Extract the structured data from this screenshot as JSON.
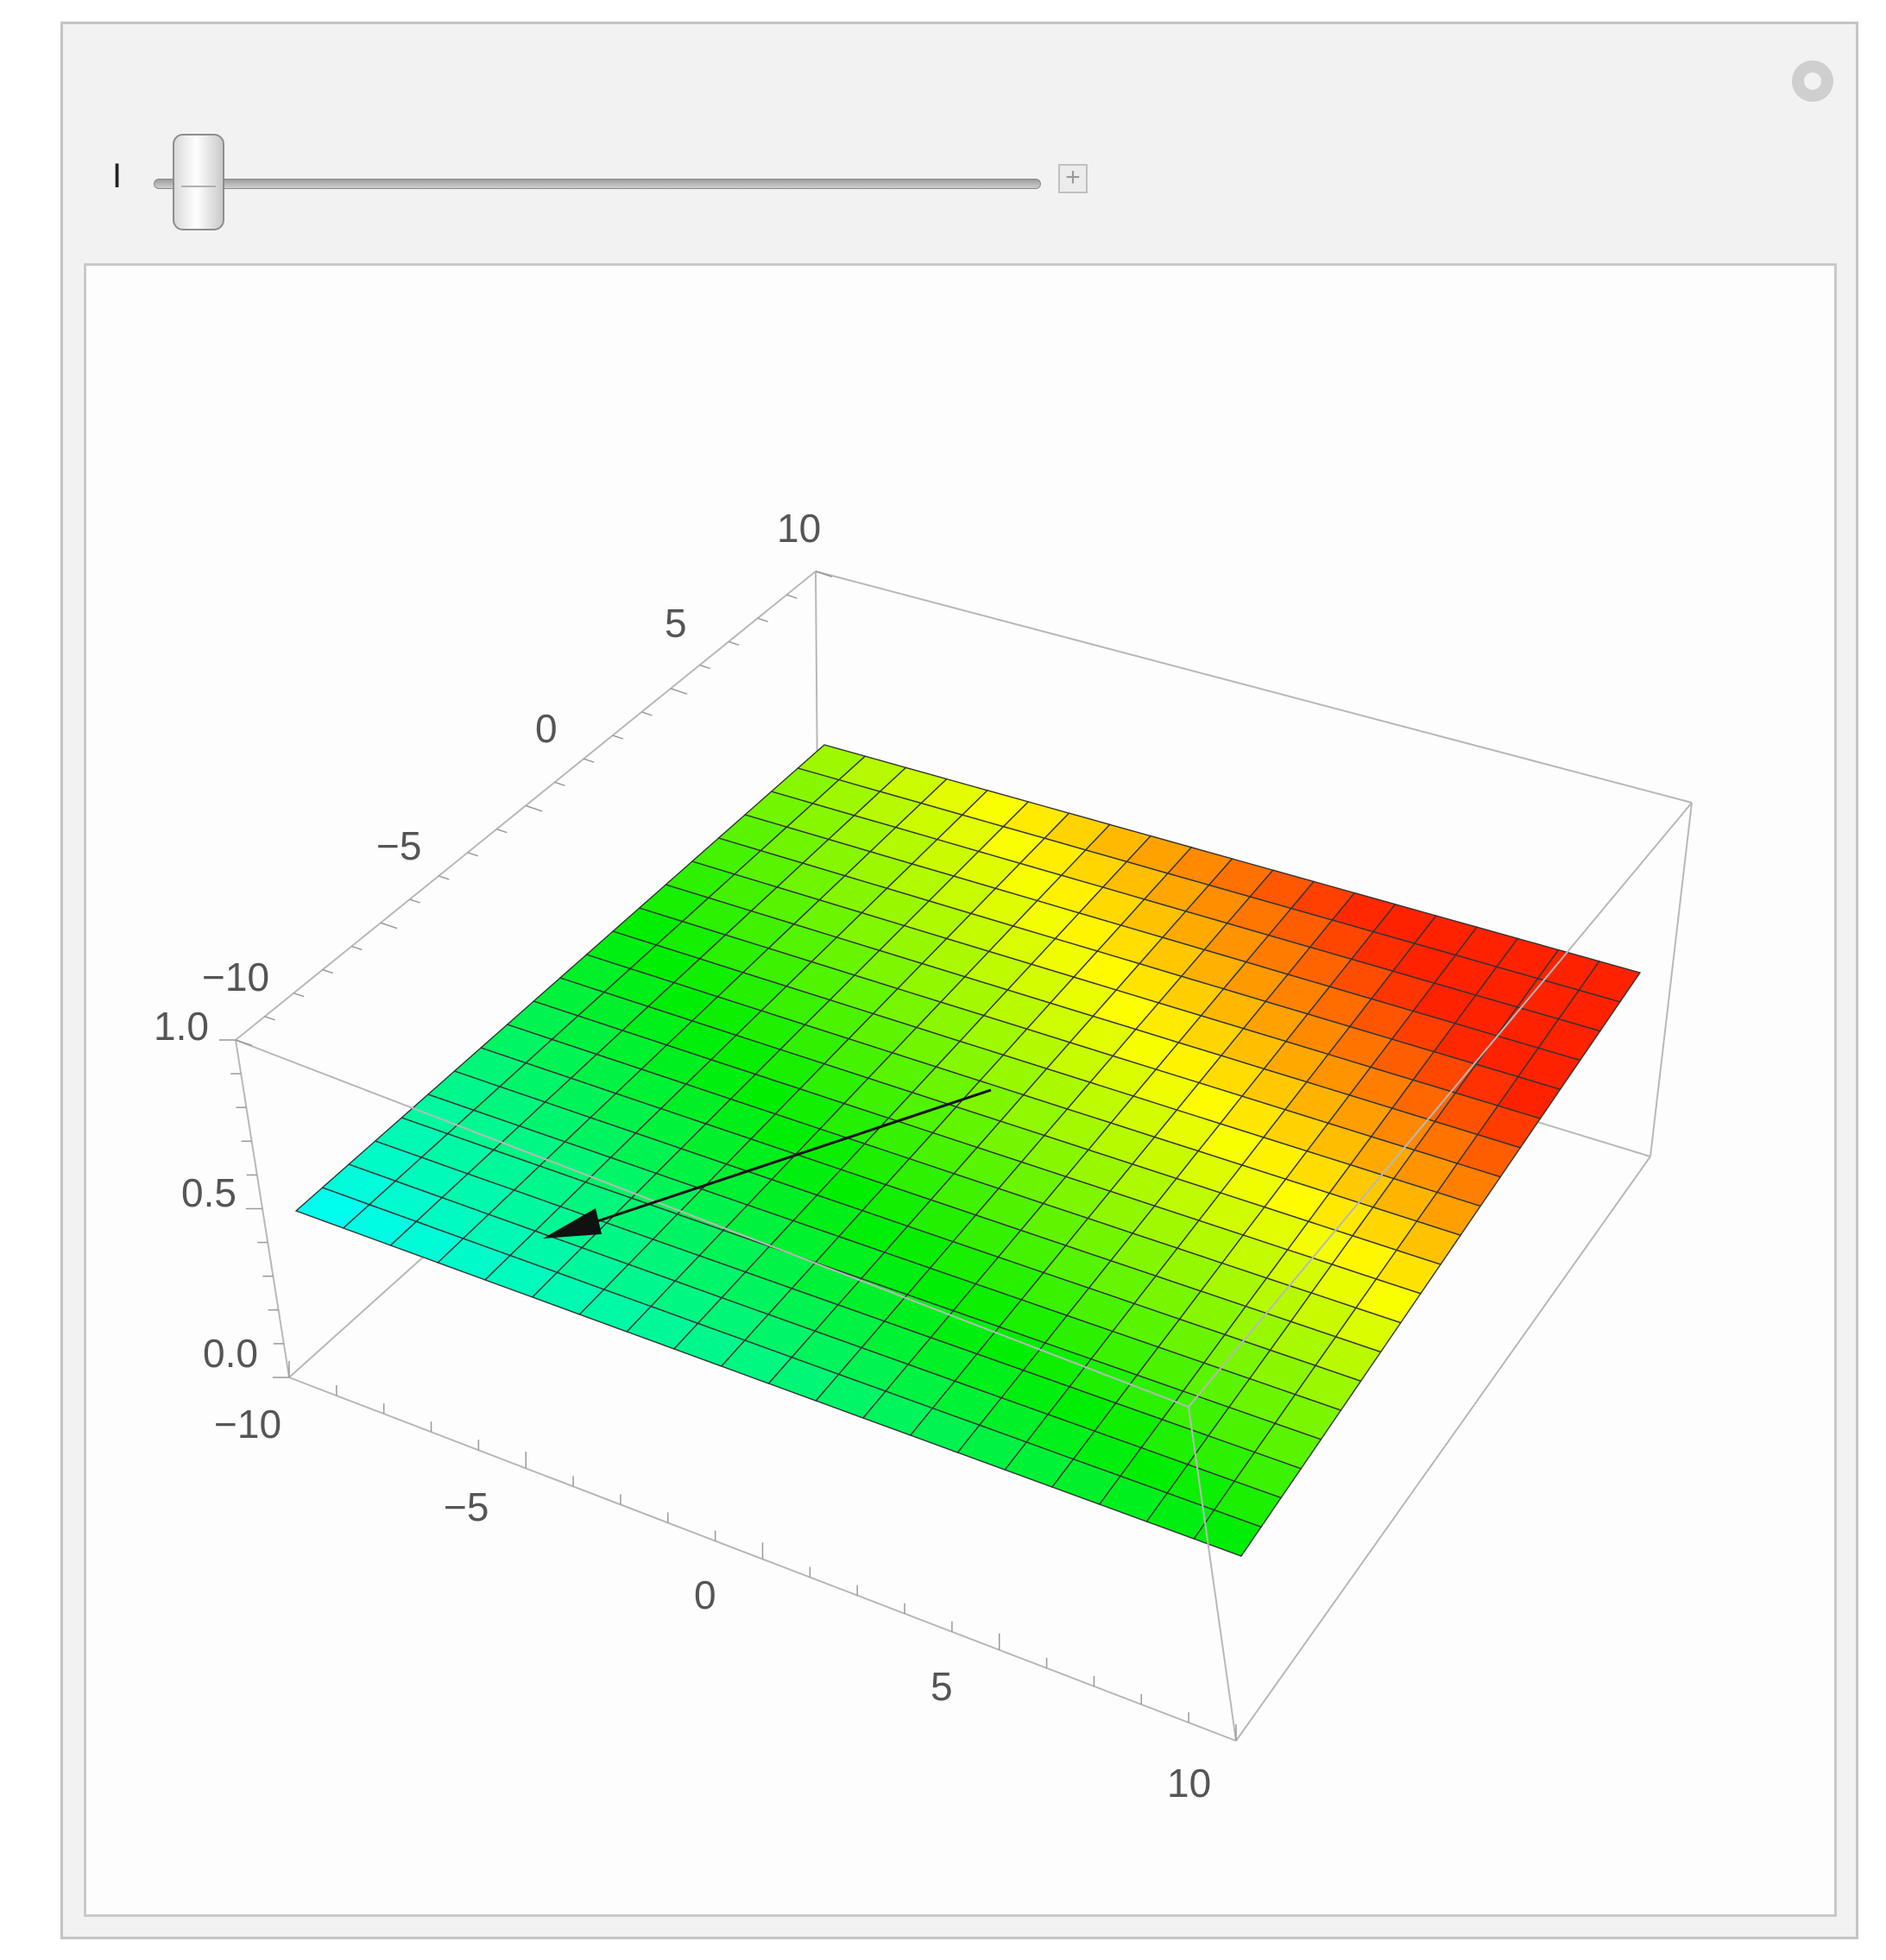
{
  "manipulate": {
    "slider_label": "I",
    "slider_value": 0.05,
    "expand_glyph": "+",
    "options_icon": "gear-icon"
  },
  "plot": {
    "x_ticks": [
      "−10",
      "−5",
      "0",
      "5",
      "10"
    ],
    "y_ticks": [
      "−10",
      "−5",
      "0",
      "5",
      "10"
    ],
    "z_ticks": [
      "0.0",
      "0.5",
      "1.0"
    ],
    "x_range": [
      -10,
      10
    ],
    "y_range": [
      -10,
      10
    ],
    "z_range": [
      0,
      1
    ],
    "mesh_divisions": 20,
    "colors": {
      "low": "#00ffff",
      "mid": "#00ee00",
      "midhigh": "#ffff00",
      "high": "#ff2200",
      "mesh": "#333333",
      "box": "#b8b8b8",
      "arrow": "#111111"
    }
  }
}
